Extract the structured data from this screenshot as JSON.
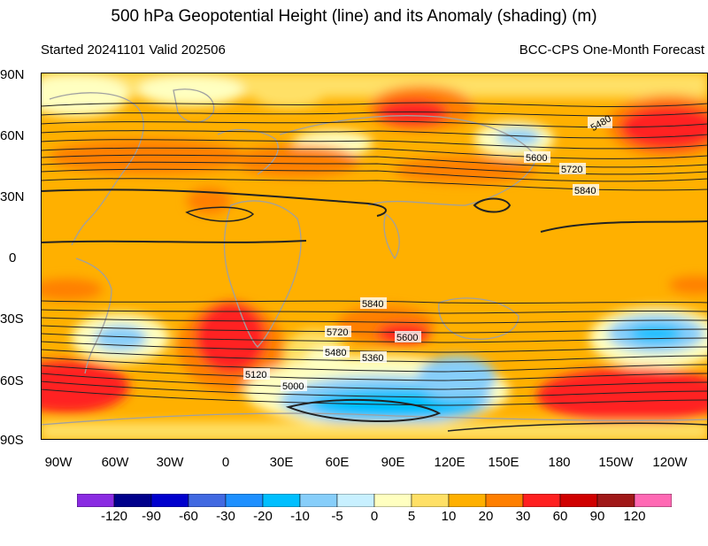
{
  "header": {
    "title": "500 hPa Geopotential Height (line) and its Anomaly (shading) (m)",
    "started": "Started 20241101  Valid 202506",
    "source": "BCC-CPS One-Month Forecast"
  },
  "lat_labels": [
    "90N",
    "60N",
    "30N",
    "0",
    "30S",
    "60S",
    "90S"
  ],
  "lon_labels": [
    "90W",
    "60W",
    "30W",
    "0",
    "30E",
    "60E",
    "90E",
    "120E",
    "150E",
    "180",
    "150W",
    "120W"
  ],
  "contour_labels": [
    "5480",
    "5600",
    "5720",
    "5840",
    "5840",
    "5720",
    "5600",
    "5480",
    "5360",
    "5120",
    "5000"
  ],
  "colorbar": {
    "labels": [
      "-120",
      "-90",
      "-60",
      "-30",
      "-20",
      "-10",
      "-5",
      "0",
      "5",
      "10",
      "20",
      "30",
      "60",
      "90",
      "120"
    ],
    "colors": [
      "#8a2be2",
      "#00008b",
      "#0000cd",
      "#4169e1",
      "#1e90ff",
      "#00bfff",
      "#87cefa",
      "#c8f0ff",
      "#ffffc0",
      "#ffe066",
      "#ffb000",
      "#ff7f00",
      "#ff2020",
      "#d00000",
      "#a01818",
      "#ff69b4"
    ]
  },
  "map_colors": {
    "base": "#ffb000",
    "warm": "#ff7f00",
    "hot": "#ff2020",
    "very_hot": "#d00000",
    "cool": "#87cefa",
    "cold": "#00bfff",
    "pale": "#ffffc0",
    "light": "#ffe066",
    "coast": "#a0a0a0",
    "contour": "#222222"
  }
}
